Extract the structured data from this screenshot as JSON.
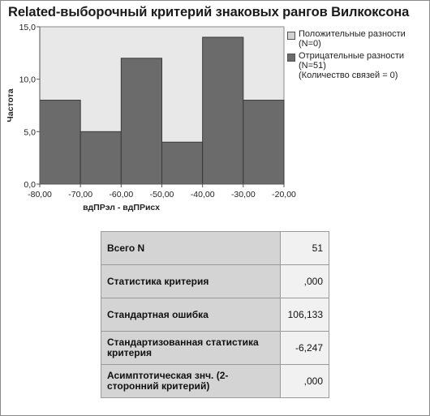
{
  "title": "Related-выборочный критерий знаковых рангов Вилкоксона",
  "chart_data": {
    "type": "bar",
    "xlabel": "вдПРэл - вдПРисх",
    "ylabel": "Частота",
    "x_ticks": [
      "-80,00",
      "-70,00",
      "-60,00",
      "-50,00",
      "-40,00",
      "-30,00",
      "-20,00"
    ],
    "y_ticks": [
      "0,0",
      "5,0",
      "10,0",
      "15,0"
    ],
    "xlim": [
      -80,
      -20
    ],
    "ylim": [
      0,
      15
    ],
    "grid": false,
    "legend_position": "right",
    "bins": [
      [
        -80,
        -70
      ],
      [
        -70,
        -60
      ],
      [
        -60,
        -50
      ],
      [
        -50,
        -40
      ],
      [
        -40,
        -30
      ],
      [
        -30,
        -20
      ]
    ],
    "series": [
      {
        "name": "Отрицательные разности",
        "values": [
          8,
          5,
          12,
          4,
          14,
          8
        ],
        "color": "#6b6b6b"
      }
    ],
    "legend": [
      {
        "line1": "Положительные разности",
        "line2": "(N=0)",
        "color": "#d3d3d3"
      },
      {
        "line1": "Отрицательные разности",
        "line2": "(N=51)",
        "line3": "(Количество связей = 0)",
        "color": "#6b6b6b"
      }
    ],
    "plot_background": "#e8e8e8"
  },
  "stats_table": [
    {
      "label": "Всего N",
      "value": "51"
    },
    {
      "label": "Статистика критерия",
      "value": ",000"
    },
    {
      "label": "Стандартная ошибка",
      "value": "106,133"
    },
    {
      "label": "Стандартизованная статистика критерия",
      "value": "-6,247"
    },
    {
      "label": "Асимптотическая знч. (2-сторонний критерий)",
      "value": ",000"
    }
  ]
}
